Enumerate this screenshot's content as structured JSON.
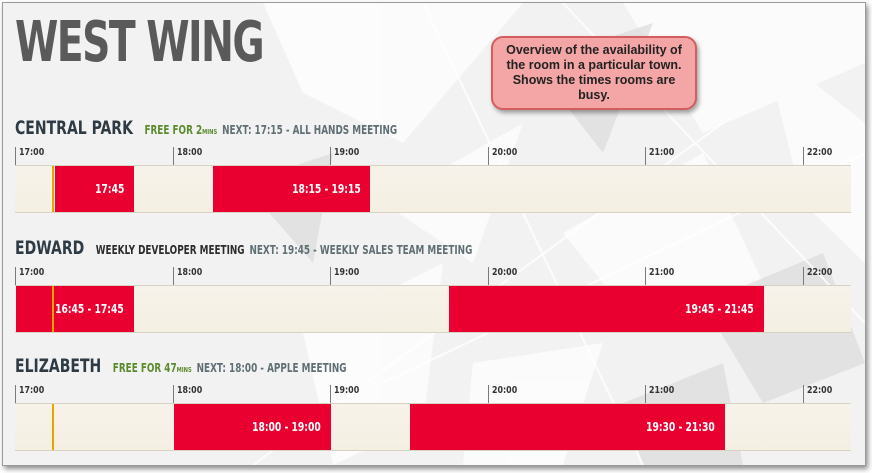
{
  "title": "WEST WING",
  "callout": "Overview of the availability of the room in a particular town. Shows the times rooms are busy.",
  "timeline": {
    "start_hour": 17,
    "end_hour": 22.23,
    "hours": [
      "17:00",
      "18:00",
      "19:00",
      "20:00",
      "21:00",
      "22:00"
    ],
    "now_hour": 17.23
  },
  "rooms": [
    {
      "name": "CENTRAL PARK",
      "status": "FREE FOR 2",
      "status_unit": "MINS",
      "status_kind": "free",
      "next": "NEXT: 17:15 - ALL HANDS MEETING",
      "bookings": [
        {
          "label": "17:45",
          "start": 17.25,
          "end": 17.75
        },
        {
          "label": "18:15 - 19:15",
          "start": 18.25,
          "end": 19.25
        }
      ]
    },
    {
      "name": "EDWARD",
      "status": "WEEKLY DEVELOPER MEETING",
      "status_unit": "",
      "status_kind": "busy",
      "next": "NEXT: 19:45 - WEEKLY SALES TEAM MEETING",
      "bookings": [
        {
          "label": "16:45 - 17:45",
          "start": 17.0,
          "end": 17.75
        },
        {
          "label": "19:45 - 21:45",
          "start": 19.75,
          "end": 21.75
        }
      ]
    },
    {
      "name": "ELIZABETH",
      "status": "FREE FOR 47",
      "status_unit": "MINS",
      "status_kind": "free",
      "next": "NEXT: 18:00 - APPLE MEETING",
      "bookings": [
        {
          "label": "18:00 - 19:00",
          "start": 18.0,
          "end": 19.0
        },
        {
          "label": "19:30 - 21:30",
          "start": 19.5,
          "end": 21.5
        }
      ]
    }
  ]
}
